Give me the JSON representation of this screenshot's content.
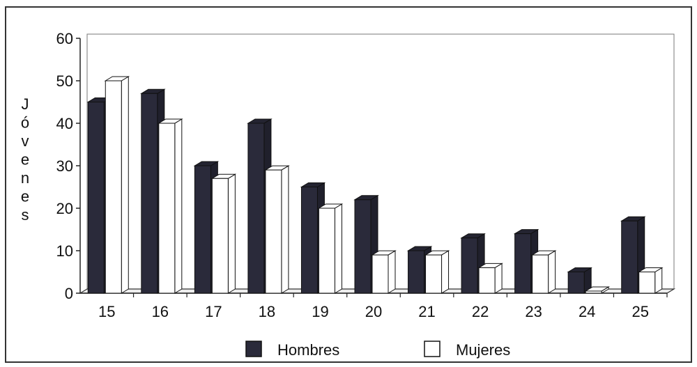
{
  "chart_data": {
    "type": "bar",
    "title": "",
    "xlabel": "",
    "ylabel": "Jóvenes",
    "categories": [
      "15",
      "16",
      "17",
      "18",
      "19",
      "20",
      "21",
      "22",
      "23",
      "24",
      "25"
    ],
    "series": [
      {
        "name": "Hombres",
        "values": [
          45,
          47,
          30,
          40,
          25,
          22,
          10,
          13,
          14,
          5,
          17
        ],
        "color": "#2a2a3a"
      },
      {
        "name": "Mujeres",
        "values": [
          50,
          40,
          27,
          29,
          20,
          9,
          9,
          6,
          9,
          0.5,
          5
        ],
        "color": "#ffffff"
      }
    ],
    "ylim": [
      0,
      60
    ],
    "yticks": [
      "0",
      "10",
      "20",
      "30",
      "40",
      "50",
      "60"
    ],
    "grid": false,
    "legend_position": "bottom-center"
  }
}
